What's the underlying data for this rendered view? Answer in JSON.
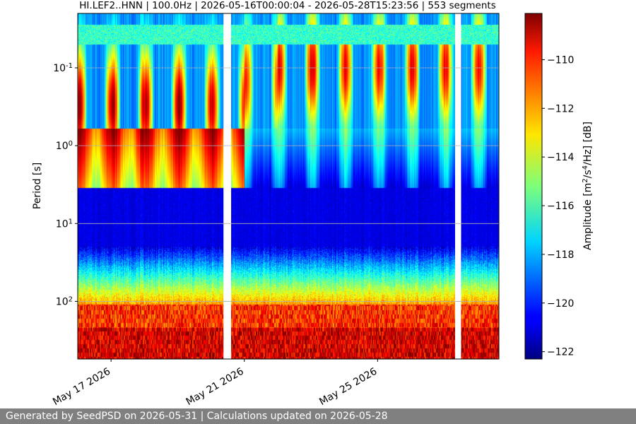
{
  "chart_data": {
    "type": "heatmap",
    "title": "HI.LEF2..HNN | 100.0Hz | 2026-05-16T00:00:04 - 2026-05-28T15:23:56 | 553 segments",
    "xlabel": "",
    "ylabel": "Period [s]",
    "y_scale": "log-inverted",
    "y_range_s": [
      0.02,
      550
    ],
    "y_ticks": [
      {
        "value": 0.1,
        "label": "10^{-1}"
      },
      {
        "value": 1,
        "label": "10^{0}"
      },
      {
        "value": 10,
        "label": "10^{1}"
      },
      {
        "value": 100,
        "label": "10^{2}"
      }
    ],
    "x_range": [
      "2026-05-16T00:00:04",
      "2026-05-28T15:23:56"
    ],
    "x_ticks": [
      {
        "date": "2026-05-17",
        "label": "May 17 2026"
      },
      {
        "date": "2026-05-21",
        "label": "May 21 2026"
      },
      {
        "date": "2026-05-25",
        "label": "May 25 2026"
      }
    ],
    "colorbar": {
      "label": "Amplitude [m^2/s^4/Hz] [dB]",
      "range_db": [
        -122.3,
        -108.1
      ],
      "ticks": [
        -110,
        -112,
        -114,
        -116,
        -118,
        -120,
        -122
      ],
      "colormap": "jet"
    },
    "data_gaps": [
      {
        "start": "2026-05-20T09:00:00",
        "end": "2026-05-20T14:30:00"
      },
      {
        "start": "2026-05-27T07:50:00",
        "end": "2026-05-27T12:10:00"
      }
    ],
    "persistent_bands": [
      {
        "period_s": [
          0.028,
          0.05
        ],
        "level_db": -117,
        "note": "narrow high-frequency band"
      },
      {
        "period_s": [
          5,
          15
        ],
        "level_db": -121.5,
        "note": "quiet band"
      },
      {
        "period_s": [
          120,
          550
        ],
        "level_db": -109,
        "note": "long-period noise"
      }
    ],
    "daily_peaks": [
      {
        "date": "2026-05-16",
        "amplitude_db": -108.3,
        "period_s": 0.3
      },
      {
        "date": "2026-05-17",
        "amplitude_db": -108.5,
        "period_s": 0.3
      },
      {
        "date": "2026-05-18",
        "amplitude_db": -108.6,
        "period_s": 0.3
      },
      {
        "date": "2026-05-19",
        "amplitude_db": -108.4,
        "period_s": 0.3
      },
      {
        "date": "2026-05-20",
        "amplitude_db": -109.5,
        "period_s": 0.3
      },
      {
        "date": "2026-05-21",
        "amplitude_db": -110.2,
        "period_s": 0.15
      },
      {
        "date": "2026-05-22",
        "amplitude_db": -109.3,
        "period_s": 0.1
      },
      {
        "date": "2026-05-23",
        "amplitude_db": -109.5,
        "period_s": 0.1
      },
      {
        "date": "2026-05-24",
        "amplitude_db": -110.1,
        "period_s": 0.1
      },
      {
        "date": "2026-05-25",
        "amplitude_db": -109.6,
        "period_s": 0.1
      },
      {
        "date": "2026-05-26",
        "amplitude_db": -109.4,
        "period_s": 0.1
      },
      {
        "date": "2026-05-27",
        "amplitude_db": -110.2,
        "period_s": 0.1
      },
      {
        "date": "2026-05-28",
        "amplitude_db": -110.0,
        "period_s": 0.1
      }
    ],
    "grid": true,
    "legend": "none"
  },
  "footer": "Generated by SeedPSD on 2026-05-31 | Calculations updated on 2026-05-28"
}
